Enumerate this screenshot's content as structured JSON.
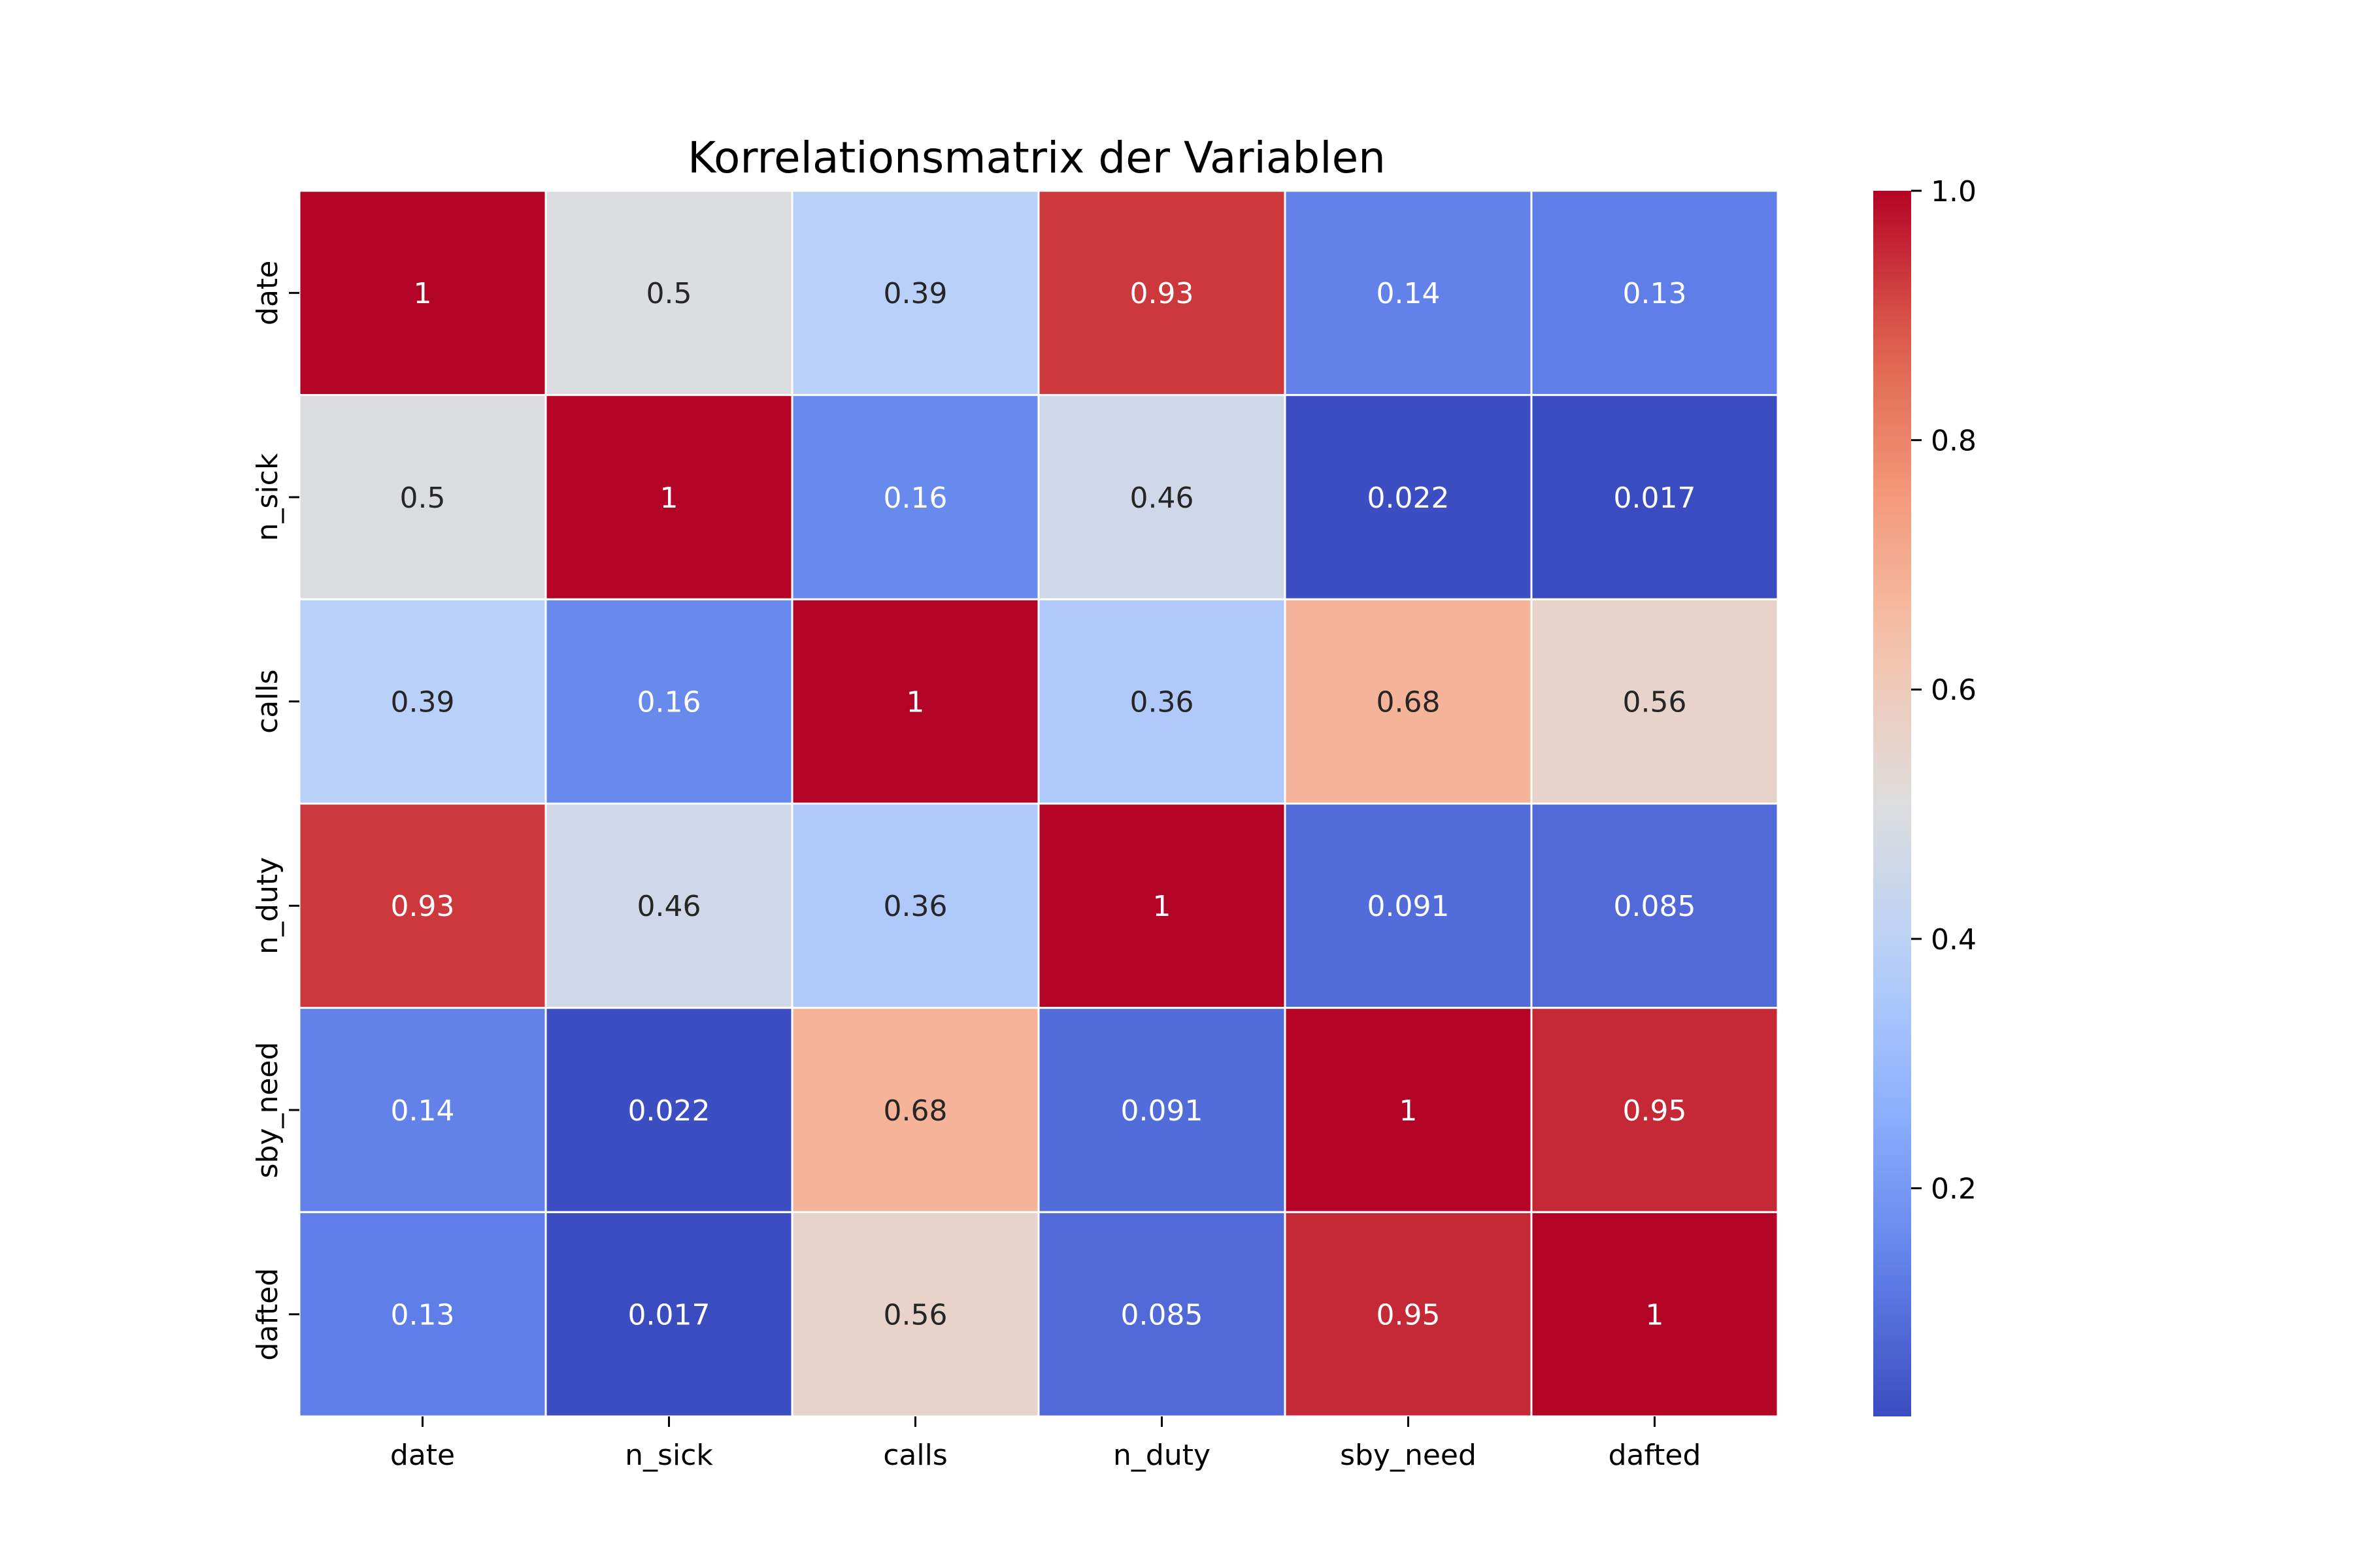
{
  "chart_data": {
    "type": "heatmap",
    "title": "Korrelationsmatrix der Variablen",
    "x_labels": [
      "date",
      "n_sick",
      "calls",
      "n_duty",
      "sby_need",
      "dafted"
    ],
    "y_labels": [
      "date",
      "n_sick",
      "calls",
      "n_duty",
      "sby_need",
      "dafted"
    ],
    "values": [
      [
        1,
        0.5,
        0.39,
        0.93,
        0.14,
        0.13
      ],
      [
        0.5,
        1,
        0.16,
        0.46,
        0.022,
        0.017
      ],
      [
        0.39,
        0.16,
        1,
        0.36,
        0.68,
        0.56
      ],
      [
        0.93,
        0.46,
        0.36,
        1,
        0.091,
        0.085
      ],
      [
        0.14,
        0.022,
        0.68,
        0.091,
        1,
        0.95
      ],
      [
        0.13,
        0.017,
        0.56,
        0.085,
        0.95,
        1
      ]
    ],
    "annotations": [
      [
        "1",
        "0.5",
        "0.39",
        "0.93",
        "0.14",
        "0.13"
      ],
      [
        "0.5",
        "1",
        "0.16",
        "0.46",
        "0.022",
        "0.017"
      ],
      [
        "0.39",
        "0.16",
        "1",
        "0.36",
        "0.68",
        "0.56"
      ],
      [
        "0.93",
        "0.46",
        "0.36",
        "1",
        "0.091",
        "0.085"
      ],
      [
        "0.14",
        "0.022",
        "0.68",
        "0.091",
        "1",
        "0.95"
      ],
      [
        "0.13",
        "0.017",
        "0.56",
        "0.085",
        "0.95",
        "1"
      ]
    ],
    "colormap": "coolwarm",
    "vmin": 0.017,
    "vmax": 1.0,
    "colorbar_ticks": [
      0.2,
      0.4,
      0.6,
      0.8,
      1.0
    ],
    "colorbar_tick_labels": [
      "0.2",
      "0.4",
      "0.6",
      "0.8",
      "1.0"
    ],
    "grid_line_color": "#ffffff"
  }
}
